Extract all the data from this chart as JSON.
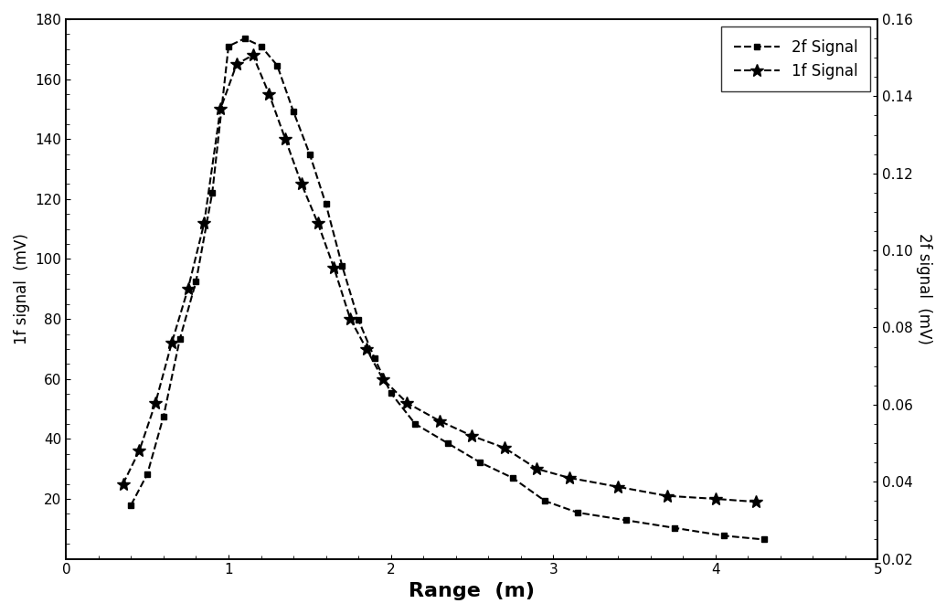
{
  "title": "",
  "xlabel": "Range  (m)",
  "ylabel_left": "1f signal  (mV)",
  "ylabel_right": "2f signal  (mV)",
  "xlim": [
    0,
    5
  ],
  "ylim_left": [
    0,
    180
  ],
  "ylim_right": [
    0.02,
    0.16
  ],
  "xticks": [
    0,
    1,
    2,
    3,
    4,
    5
  ],
  "yticks_left": [
    20,
    40,
    60,
    80,
    100,
    120,
    140,
    160,
    180
  ],
  "yticks_right": [
    0.02,
    0.04,
    0.06,
    0.08,
    0.1,
    0.12,
    0.14,
    0.16
  ],
  "signal_1f_x": [
    0.35,
    0.45,
    0.55,
    0.65,
    0.75,
    0.85,
    0.95,
    1.05,
    1.15,
    1.25,
    1.35,
    1.45,
    1.55,
    1.65,
    1.75,
    1.85,
    1.95,
    2.1,
    2.3,
    2.5,
    2.7,
    2.9,
    3.1,
    3.4,
    3.7,
    4.0,
    4.25
  ],
  "signal_1f_y": [
    25,
    36,
    52,
    72,
    90,
    112,
    150,
    165,
    168,
    155,
    140,
    125,
    112,
    97,
    80,
    70,
    60,
    52,
    46,
    41,
    37,
    30,
    27,
    24,
    21,
    20,
    19
  ],
  "signal_2f_x": [
    0.4,
    0.5,
    0.6,
    0.7,
    0.8,
    0.9,
    1.0,
    1.1,
    1.2,
    1.3,
    1.4,
    1.5,
    1.6,
    1.7,
    1.8,
    1.9,
    2.0,
    2.15,
    2.35,
    2.55,
    2.75,
    2.95,
    3.15,
    3.45,
    3.75,
    4.05,
    4.3
  ],
  "signal_2f_y": [
    0.034,
    0.042,
    0.057,
    0.077,
    0.092,
    0.115,
    0.153,
    0.155,
    0.153,
    0.148,
    0.136,
    0.125,
    0.112,
    0.096,
    0.082,
    0.072,
    0.063,
    0.055,
    0.05,
    0.045,
    0.041,
    0.035,
    0.032,
    0.03,
    0.028,
    0.026,
    0.025
  ],
  "color_1f": "#000000",
  "color_2f": "#000000",
  "marker_1f": "*",
  "marker_2f": "s",
  "markersize_1f": 10,
  "markersize_2f": 5,
  "linewidth": 1.5,
  "linestyle": "--",
  "legend_labels": [
    "2f Signal",
    "1f Signal"
  ],
  "legend_loc": "upper right",
  "background_color": "#ffffff",
  "xlabel_fontsize": 16,
  "ylabel_fontsize": 12,
  "tick_fontsize": 11,
  "legend_fontsize": 12
}
